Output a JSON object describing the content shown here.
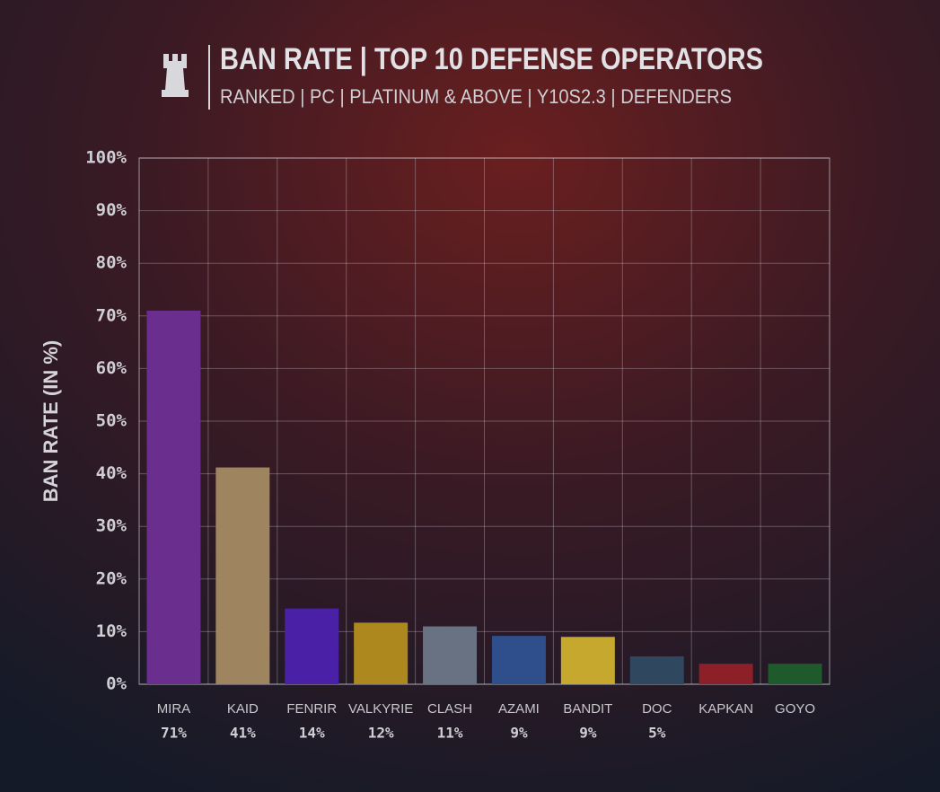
{
  "chart_data": {
    "type": "bar",
    "title": "BAN RATE | TOP 10 DEFENSE OPERATORS",
    "subtitle": "RANKED | PC | PLATINUM & ABOVE | Y10S2.3 | DEFENDERS",
    "y_label": "BAN RATE (IN %)",
    "categories": [
      "MIRA",
      "KAID",
      "FENRIR",
      "VALKYRIE",
      "CLASH",
      "AZAMI",
      "BANDIT",
      "DOC",
      "KAPKAN",
      "GOYO"
    ],
    "values": [
      71,
      41.2,
      14.4,
      11.7,
      11,
      9.2,
      9,
      5.3,
      3.9,
      3.9
    ],
    "value_labels": [
      "71%",
      "41%",
      "14%",
      "12%",
      "11%",
      "9%",
      "9%",
      "5%",
      null,
      null
    ],
    "colors": [
      "#6a2e8e",
      "#9e845f",
      "#4a20a6",
      "#ad881e",
      "#687282",
      "#2e4e8c",
      "#c7a82e",
      "#2f485f",
      "#8c1f27",
      "#1e5a2b"
    ],
    "ylim": [
      0,
      100
    ],
    "yticks": [
      {
        "value": 0,
        "label": "0%"
      },
      {
        "value": 10,
        "label": "10%"
      },
      {
        "value": 20,
        "label": "20%"
      },
      {
        "value": 30,
        "label": "30%"
      },
      {
        "value": 40,
        "label": "40%"
      },
      {
        "value": 50,
        "label": "50%"
      },
      {
        "value": 60,
        "label": "60%"
      },
      {
        "value": 70,
        "label": "70%"
      },
      {
        "value": 80,
        "label": "80%"
      },
      {
        "value": 90,
        "label": "90%"
      },
      {
        "value": 100,
        "label": "100%"
      }
    ],
    "grid": true
  }
}
